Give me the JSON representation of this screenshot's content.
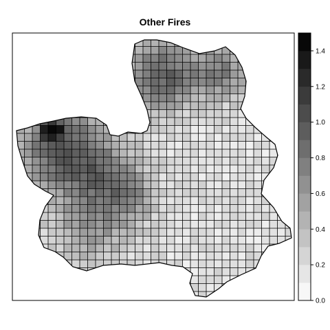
{
  "title": "Other Fires",
  "chart_data": {
    "type": "heatmap",
    "title": "Other Fires",
    "colorbar": {
      "min": 0.0,
      "max": 1.5,
      "step": 0.1,
      "ticks": [
        0.0,
        0.2,
        0.4,
        0.6,
        0.8,
        1.0,
        1.2,
        1.4
      ],
      "tick_labels": [
        "0.0",
        "0.2",
        "0.4",
        "0.6",
        "0.8",
        "1.0",
        "1.2",
        "1.4"
      ],
      "color_low": "#ffffff",
      "color_high": "#000000"
    },
    "grid": "on",
    "fill_colors": {
      "background": "#ffffff",
      "border": "#000000"
    }
  }
}
